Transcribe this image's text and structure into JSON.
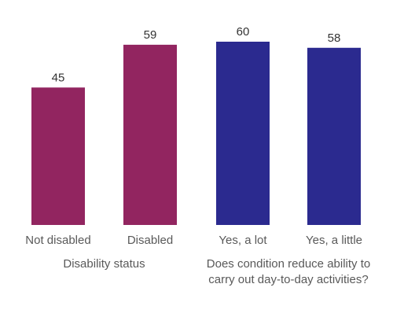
{
  "chart_data": {
    "type": "bar",
    "categories": [
      "Not disabled",
      "Disabled",
      "Yes, a lot",
      "Yes, a little"
    ],
    "values": [
      45,
      59,
      60,
      58
    ],
    "data_labels": [
      "45",
      "59",
      "60",
      "58"
    ],
    "bar_colors": [
      "#922560",
      "#922560",
      "#2b2a8f",
      "#2b2a8f"
    ],
    "groups": [
      {
        "label_lines": [
          "Disability status"
        ],
        "categories": [
          0,
          1
        ]
      },
      {
        "label_lines": [
          "Does condition reduce ability to",
          "carry out day-to-day activities?"
        ],
        "categories": [
          2,
          3
        ]
      }
    ],
    "ylim": [
      0,
      60
    ],
    "grid": false,
    "legend": "none"
  }
}
